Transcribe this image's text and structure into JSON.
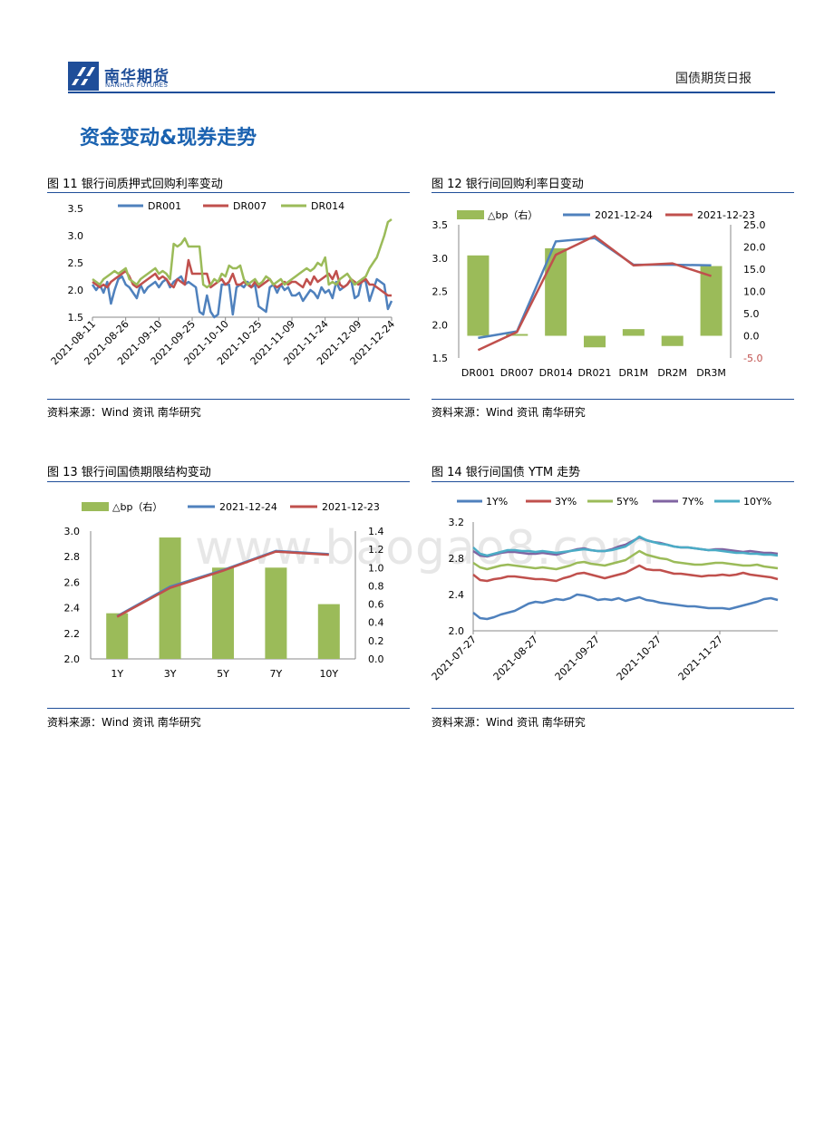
{
  "header": {
    "logo_cn": "南华期货",
    "logo_en": "NANHUA FUTURES",
    "doc_title": "国债期货日报"
  },
  "section_title": "资金变动&现券走势",
  "watermark": "www.baogao8.com",
  "source_text": "资料来源：Wind 资讯   南华研究",
  "colors": {
    "blue": "#4f81bd",
    "red": "#c0504d",
    "green": "#9bbb59",
    "purple": "#8064a2",
    "teal": "#4bacc6",
    "rule": "#1f4e99"
  },
  "figures": [
    {
      "title": "图 11  银行间质押式回购利率变动"
    },
    {
      "title": "图 12 银行间回购利率日变动"
    },
    {
      "title": "图 13  银行间国债期限结构变动"
    },
    {
      "title": "图 14  银行间国债 YTM 走势"
    }
  ],
  "chart_data": [
    {
      "type": "line",
      "legend": [
        "DR001",
        "DR007",
        "DR014"
      ],
      "y_ticks": [
        "3.5",
        "3.0",
        "2.5",
        "2.0",
        "1.5"
      ],
      "ylim": [
        1.5,
        3.5
      ],
      "x_ticks": [
        "2021-08-11",
        "2021-08-26",
        "2021-09-10",
        "2021-09-25",
        "2021-10-10",
        "2021-10-25",
        "2021-11-09",
        "2021-11-24",
        "2021-12-09",
        "2021-12-24"
      ],
      "series": [
        {
          "name": "DR001",
          "values": [
            2.1,
            2.0,
            2.1,
            1.95,
            2.15,
            1.75,
            2.0,
            2.2,
            2.25,
            2.1,
            2.05,
            1.95,
            1.85,
            2.1,
            1.95,
            2.05,
            2.1,
            2.15,
            2.05,
            2.15,
            2.2,
            2.05,
            2.15,
            2.2,
            2.25,
            2.1,
            2.15,
            2.1,
            2.05,
            1.6,
            1.55,
            1.9,
            1.6,
            1.5,
            1.55,
            2.1,
            2.1,
            2.1,
            1.55,
            2.05,
            2.1,
            2.05,
            2.15,
            2.05,
            2.1,
            1.7,
            1.65,
            1.6,
            2.05,
            2.1,
            1.95,
            2.1,
            2.0,
            2.05,
            1.9,
            1.9,
            1.95,
            1.8,
            1.9,
            2.0,
            1.95,
            1.85,
            2.05,
            1.95,
            2.0,
            1.85,
            2.15,
            2.0,
            2.05,
            2.1,
            2.2,
            1.85,
            1.9,
            2.2,
            2.15,
            1.8,
            2.0,
            2.2,
            2.15,
            2.1,
            1.65,
            1.8
          ]
        },
        {
          "name": "DR007",
          "values": [
            2.15,
            2.1,
            2.05,
            2.1,
            2.05,
            2.15,
            2.2,
            2.25,
            2.3,
            2.35,
            2.25,
            2.1,
            2.05,
            2.1,
            2.15,
            2.2,
            2.25,
            2.3,
            2.2,
            2.25,
            2.2,
            2.1,
            2.05,
            2.2,
            2.15,
            2.1,
            2.55,
            2.3,
            2.3,
            2.3,
            2.3,
            2.3,
            2.05,
            2.1,
            2.15,
            2.2,
            2.1,
            2.15,
            2.3,
            2.1,
            2.1,
            2.15,
            2.1,
            2.05,
            2.15,
            2.05,
            2.1,
            2.15,
            2.2,
            2.1,
            2.05,
            2.1,
            2.15,
            2.1,
            2.15,
            2.15,
            2.1,
            2.05,
            2.2,
            2.1,
            2.25,
            2.15,
            2.2,
            2.25,
            2.3,
            2.2,
            2.35,
            2.1,
            2.05,
            2.1,
            2.2,
            2.15,
            2.1,
            2.15,
            2.2,
            2.1,
            2.1,
            2.05,
            2.0,
            1.95,
            1.9,
            1.9
          ]
        },
        {
          "name": "DR014",
          "values": [
            2.2,
            2.15,
            2.1,
            2.2,
            2.25,
            2.3,
            2.35,
            2.3,
            2.35,
            2.4,
            2.2,
            2.15,
            2.1,
            2.2,
            2.25,
            2.3,
            2.35,
            2.4,
            2.3,
            2.35,
            2.3,
            2.2,
            2.85,
            2.8,
            2.85,
            2.95,
            2.8,
            2.8,
            2.8,
            2.8,
            2.1,
            2.05,
            2.1,
            2.2,
            2.15,
            2.3,
            2.25,
            2.45,
            2.4,
            2.4,
            2.45,
            2.2,
            2.1,
            2.15,
            2.2,
            2.1,
            2.15,
            2.25,
            2.2,
            2.1,
            2.15,
            2.2,
            2.1,
            2.15,
            2.2,
            2.25,
            2.3,
            2.35,
            2.4,
            2.35,
            2.4,
            2.5,
            2.45,
            2.6,
            2.1,
            2.15,
            2.1,
            2.2,
            2.25,
            2.3,
            2.2,
            2.1,
            2.15,
            2.2,
            2.25,
            2.4,
            2.5,
            2.6,
            2.8,
            3.0,
            3.25,
            3.3
          ]
        }
      ]
    },
    {
      "type": "bar+line",
      "categories": [
        "DR001",
        "DR007",
        "DR014",
        "DR021",
        "DR1M",
        "DR2M",
        "DR3M"
      ],
      "legend": [
        "△bp（右）",
        "2021-12-24",
        "2021-12-23"
      ],
      "y_left_ticks": [
        "3.5",
        "3.0",
        "2.5",
        "2.0",
        "1.5"
      ],
      "y_right_ticks": [
        "25.0",
        "20.0",
        "15.0",
        "10.0",
        "5.0",
        "0.0",
        "-5.0"
      ],
      "ylim_left": [
        1.5,
        3.5
      ],
      "ylim_right": [
        -5,
        25
      ],
      "series": [
        {
          "name": "△bp（右）",
          "axis": "right",
          "values": [
            18.1,
            0.4,
            19.7,
            -2.6,
            1.5,
            -2.3,
            15.7
          ]
        },
        {
          "name": "2021-12-24",
          "axis": "left",
          "values": [
            1.8,
            1.9,
            3.25,
            3.3,
            2.9,
            2.9,
            2.89
          ]
        },
        {
          "name": "2021-12-23",
          "axis": "left",
          "values": [
            1.62,
            1.89,
            3.05,
            3.33,
            2.89,
            2.92,
            2.73
          ]
        }
      ]
    },
    {
      "type": "bar+line",
      "categories": [
        "1Y",
        "3Y",
        "5Y",
        "7Y",
        "10Y"
      ],
      "legend": [
        "△bp（右）",
        "2021-12-24",
        "2021-12-23"
      ],
      "y_left_ticks": [
        "3.0",
        "2.8",
        "2.6",
        "2.4",
        "2.2",
        "2.0"
      ],
      "y_right_ticks": [
        "1.4",
        "1.2",
        "1.0",
        "0.8",
        "0.6",
        "0.4",
        "0.2",
        "0.0"
      ],
      "ylim_left": [
        2.0,
        3.0
      ],
      "ylim_right": [
        0.0,
        1.4
      ],
      "series": [
        {
          "name": "△bp（右）",
          "axis": "right",
          "values": [
            0.5,
            1.33,
            1.0,
            1.0,
            0.6
          ]
        },
        {
          "name": "2021-12-24",
          "axis": "left",
          "values": [
            2.335,
            2.565,
            2.695,
            2.845,
            2.82
          ]
        },
        {
          "name": "2021-12-23",
          "axis": "left",
          "values": [
            2.33,
            2.555,
            2.69,
            2.84,
            2.815
          ]
        }
      ]
    },
    {
      "type": "line",
      "legend": [
        "1Y%",
        "3Y%",
        "5Y%",
        "7Y%",
        "10Y%"
      ],
      "y_ticks": [
        "3.2",
        "2.8",
        "2.4",
        "2.0"
      ],
      "ylim": [
        2.0,
        3.2
      ],
      "x_ticks": [
        "2021-07-27",
        "2021-08-27",
        "2021-09-27",
        "2021-10-27",
        "2021-11-27"
      ],
      "series": [
        {
          "name": "1Y%",
          "values": [
            2.2,
            2.14,
            2.13,
            2.15,
            2.18,
            2.2,
            2.22,
            2.26,
            2.3,
            2.32,
            2.31,
            2.33,
            2.35,
            2.34,
            2.36,
            2.4,
            2.39,
            2.37,
            2.34,
            2.35,
            2.34,
            2.36,
            2.33,
            2.35,
            2.37,
            2.34,
            2.33,
            2.31,
            2.3,
            2.29,
            2.28,
            2.27,
            2.27,
            2.26,
            2.25,
            2.25,
            2.25,
            2.24,
            2.26,
            2.28,
            2.3,
            2.32,
            2.35,
            2.36,
            2.34
          ]
        },
        {
          "name": "3Y%",
          "values": [
            2.62,
            2.56,
            2.55,
            2.57,
            2.58,
            2.6,
            2.6,
            2.59,
            2.58,
            2.57,
            2.57,
            2.56,
            2.55,
            2.58,
            2.6,
            2.63,
            2.64,
            2.62,
            2.6,
            2.58,
            2.6,
            2.62,
            2.64,
            2.68,
            2.72,
            2.68,
            2.67,
            2.67,
            2.65,
            2.63,
            2.63,
            2.62,
            2.61,
            2.6,
            2.61,
            2.61,
            2.62,
            2.61,
            2.62,
            2.64,
            2.62,
            2.61,
            2.6,
            2.59,
            2.57
          ]
        },
        {
          "name": "5Y%",
          "values": [
            2.75,
            2.7,
            2.68,
            2.7,
            2.72,
            2.73,
            2.72,
            2.71,
            2.7,
            2.69,
            2.7,
            2.69,
            2.68,
            2.7,
            2.72,
            2.75,
            2.76,
            2.74,
            2.73,
            2.72,
            2.74,
            2.76,
            2.78,
            2.83,
            2.88,
            2.84,
            2.82,
            2.8,
            2.79,
            2.76,
            2.75,
            2.74,
            2.73,
            2.73,
            2.74,
            2.75,
            2.75,
            2.74,
            2.73,
            2.72,
            2.72,
            2.73,
            2.71,
            2.7,
            2.69
          ]
        },
        {
          "name": "7Y%",
          "values": [
            2.88,
            2.83,
            2.82,
            2.84,
            2.86,
            2.87,
            2.87,
            2.86,
            2.85,
            2.85,
            2.86,
            2.85,
            2.84,
            2.86,
            2.88,
            2.9,
            2.91,
            2.89,
            2.88,
            2.88,
            2.9,
            2.93,
            2.95,
            2.99,
            3.03,
            3.0,
            2.98,
            2.97,
            2.95,
            2.93,
            2.92,
            2.92,
            2.91,
            2.9,
            2.89,
            2.9,
            2.9,
            2.89,
            2.88,
            2.87,
            2.88,
            2.87,
            2.86,
            2.86,
            2.85
          ]
        },
        {
          "name": "10Y%",
          "values": [
            2.92,
            2.85,
            2.83,
            2.85,
            2.87,
            2.89,
            2.89,
            2.88,
            2.88,
            2.87,
            2.88,
            2.87,
            2.86,
            2.87,
            2.88,
            2.89,
            2.9,
            2.89,
            2.88,
            2.88,
            2.89,
            2.91,
            2.93,
            2.98,
            3.04,
            3.0,
            2.98,
            2.96,
            2.95,
            2.93,
            2.92,
            2.92,
            2.91,
            2.9,
            2.89,
            2.89,
            2.88,
            2.87,
            2.86,
            2.86,
            2.85,
            2.85,
            2.84,
            2.84,
            2.83
          ]
        }
      ]
    }
  ]
}
